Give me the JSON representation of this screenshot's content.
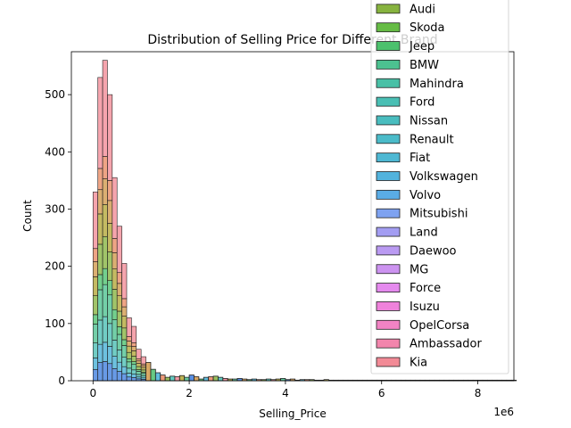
{
  "chart_data": {
    "type": "bar",
    "stacked": true,
    "title": "Distribution of Selling Price for Different Brand",
    "xlabel": "Selling_Price",
    "ylabel": "Count",
    "x_offset_label": "1e6",
    "xlim": [
      -0.45,
      8.75
    ],
    "ylim": [
      0,
      575
    ],
    "x_ticks": [
      0,
      2,
      4,
      6,
      8
    ],
    "x_tick_labels": [
      "0",
      "2",
      "4",
      "6",
      "8"
    ],
    "y_ticks": [
      0,
      100,
      200,
      300,
      400,
      500
    ],
    "y_tick_labels": [
      "0",
      "100",
      "200",
      "300",
      "400",
      "500"
    ],
    "grid": false,
    "legend_position": "top-right",
    "bin_width": 0.1,
    "bin_starts": [
      0.0,
      0.1,
      0.2,
      0.3,
      0.4,
      0.5,
      0.6,
      0.7,
      0.8,
      0.9,
      1.0,
      1.1,
      1.2,
      1.3,
      1.4,
      1.5,
      1.6,
      1.7,
      1.8,
      1.9,
      2.0,
      2.1,
      2.2,
      2.3,
      2.4,
      2.5,
      2.6,
      2.7,
      2.8,
      2.9,
      3.0,
      3.1,
      3.2,
      3.3,
      3.4,
      3.5,
      3.6,
      3.7,
      3.8,
      3.9,
      4.0,
      4.1,
      4.2,
      4.3,
      4.4,
      4.5,
      4.6,
      4.7,
      4.8,
      4.9,
      5.0,
      5.1,
      5.2,
      5.3,
      5.4,
      5.5,
      5.6,
      5.7,
      5.8,
      5.9,
      6.0,
      6.1,
      6.2,
      6.3,
      6.4,
      6.5,
      6.6,
      6.7,
      6.8,
      6.9,
      7.0,
      7.1,
      7.2,
      7.3,
      7.4,
      7.5,
      7.6,
      7.7,
      7.8,
      7.9,
      8.0,
      8.1,
      8.2,
      8.3,
      8.4,
      8.5,
      8.6,
      8.7
    ],
    "totals": [
      330,
      530,
      560,
      500,
      355,
      270,
      205,
      110,
      95,
      55,
      42,
      32,
      20,
      14,
      10,
      6,
      8,
      7,
      9,
      6,
      10,
      7,
      3,
      6,
      7,
      8,
      6,
      4,
      3,
      3,
      4,
      3,
      2,
      3,
      2,
      2,
      3,
      2,
      3,
      4,
      2,
      3,
      1,
      2,
      2,
      2,
      1,
      1,
      2,
      1,
      1,
      1,
      1,
      1,
      1,
      1,
      1,
      1,
      1,
      1,
      1,
      1,
      1,
      1,
      1,
      1,
      1,
      1,
      1,
      1,
      1,
      1,
      1,
      1,
      1,
      1,
      1,
      1,
      1,
      1,
      1,
      1,
      1,
      1,
      1,
      1,
      1,
      1
    ],
    "legend_entries": [
      {
        "name": "Audi",
        "color": "#87b33f"
      },
      {
        "name": "Skoda",
        "color": "#66bc45"
      },
      {
        "name": "Jeep",
        "color": "#4cc16d"
      },
      {
        "name": "BMW",
        "color": "#4cc190"
      },
      {
        "name": "Mahindra",
        "color": "#49c0a6"
      },
      {
        "name": "Ford",
        "color": "#49bfb4"
      },
      {
        "name": "Nissan",
        "color": "#49bdbf"
      },
      {
        "name": "Renault",
        "color": "#4bbbc9"
      },
      {
        "name": "Fiat",
        "color": "#4eb8d3"
      },
      {
        "name": "Volkswagen",
        "color": "#52b3dd"
      },
      {
        "name": "Volvo",
        "color": "#5aace6"
      },
      {
        "name": "Mitsubishi",
        "color": "#7ea2f0"
      },
      {
        "name": "Land",
        "color": "#a39df2"
      },
      {
        "name": "Daewoo",
        "color": "#ba9af2"
      },
      {
        "name": "MG",
        "color": "#cc93f0"
      },
      {
        "name": "Force",
        "color": "#e58aee"
      },
      {
        "name": "Isuzu",
        "color": "#ef82db"
      },
      {
        "name": "OpelCorsa",
        "color": "#f283c4"
      },
      {
        "name": "Ambassador",
        "color": "#f285ac"
      },
      {
        "name": "Kia",
        "color": "#f28a96"
      }
    ],
    "stack_colors_bottom_to_top": [
      "#3d7ddf",
      "#44b0d6",
      "#49bfb4",
      "#4cc190",
      "#4cc16d",
      "#87b33f",
      "#b3a636",
      "#d1984a",
      "#e98a63",
      "#f28a96"
    ],
    "stack_fractions_bottom_to_top": [
      0.06,
      0.06,
      0.08,
      0.1,
      0.05,
      0.1,
      0.1,
      0.08,
      0.07,
      0.3
    ]
  }
}
